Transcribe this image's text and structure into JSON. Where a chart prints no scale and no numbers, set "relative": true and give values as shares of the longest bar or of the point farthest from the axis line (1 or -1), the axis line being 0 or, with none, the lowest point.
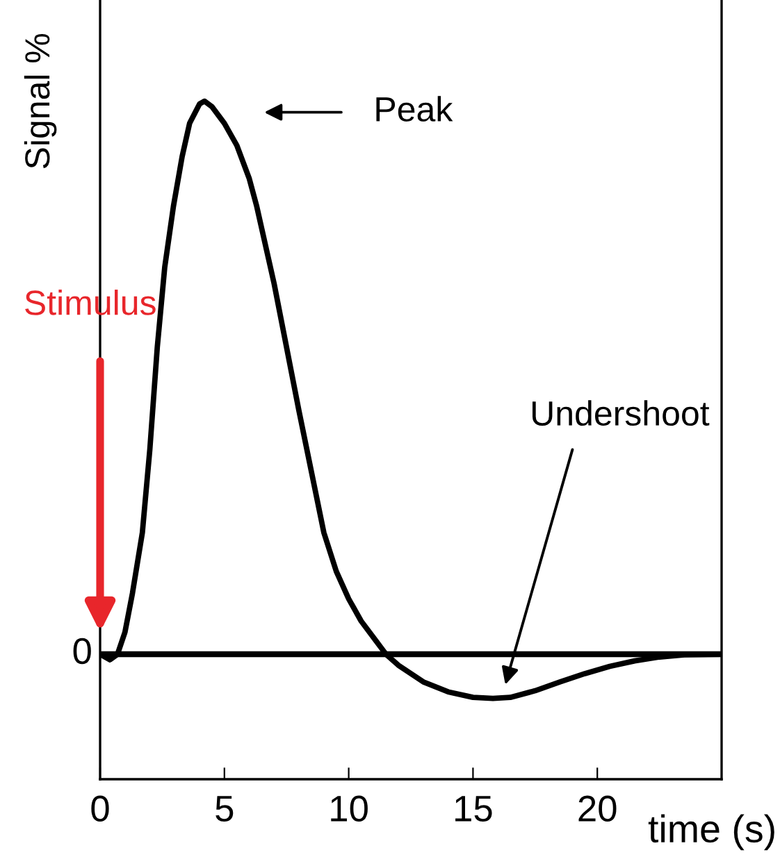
{
  "chart_data": {
    "type": "line",
    "relative": true,
    "xlabel": "time (s)",
    "ylabel": "Signal %",
    "x": [
      0,
      0.4,
      0.7,
      1.0,
      1.3,
      1.7,
      2.0,
      2.3,
      2.6,
      2.95,
      3.3,
      3.6,
      4.0,
      4.2,
      4.5,
      5.0,
      5.5,
      6.0,
      6.3,
      7.0,
      7.5,
      8.0,
      8.5,
      9.0,
      9.5,
      10.0,
      10.5,
      11.0,
      11.5,
      12.0,
      13.0,
      14.0,
      15.0,
      15.8,
      16.5,
      17.5,
      18.5,
      19.5,
      20.5,
      21.5,
      22.5,
      23.5,
      25.0
    ],
    "series": [
      {
        "color": "#000000",
        "values": [
          0,
          -0.01,
          0,
          0.04,
          0.11,
          0.22,
          0.37,
          0.555,
          0.7,
          0.81,
          0.9,
          0.96,
          0.995,
          1.0,
          0.99,
          0.96,
          0.92,
          0.86,
          0.81,
          0.67,
          0.555,
          0.44,
          0.33,
          0.22,
          0.15,
          0.1,
          0.06,
          0.03,
          0,
          -0.02,
          -0.05,
          -0.068,
          -0.078,
          -0.08,
          -0.078,
          -0.066,
          -0.05,
          -0.035,
          -0.022,
          -0.012,
          -0.005,
          -0.001,
          0
        ]
      }
    ],
    "xlim": [
      0,
      25
    ],
    "xticks": [
      0,
      5,
      10,
      15,
      20
    ],
    "ref_lines": [
      {
        "axis": "y",
        "value": 0,
        "color": "#000000"
      }
    ],
    "annotations": [
      "Peak",
      "Undershoot",
      "Stimulus",
      {
        "text": "0",
        "x": 0,
        "y": 0
      }
    ],
    "grid": false,
    "legend": false,
    "marker": "none",
    "line_style": "solid"
  }
}
